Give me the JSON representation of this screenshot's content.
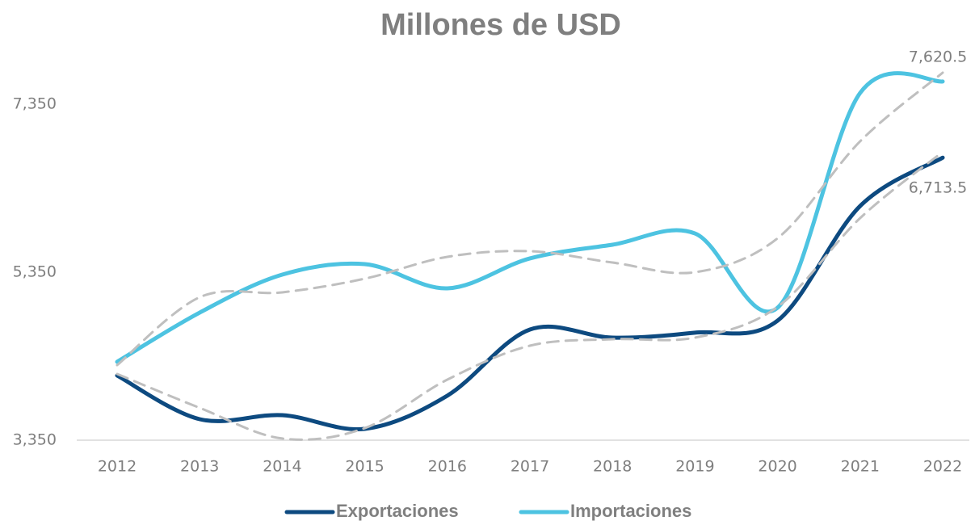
{
  "chart_data": {
    "type": "line",
    "title": "Millones de USD",
    "categories": [
      "2012",
      "2013",
      "2014",
      "2015",
      "2016",
      "2017",
      "2018",
      "2019",
      "2020",
      "2021",
      "2022"
    ],
    "series": [
      {
        "name": "Exportaciones",
        "color": "#0d4a80",
        "values": [
          4120,
          3600,
          3648,
          3485,
          3880,
          4667,
          4571,
          4630,
          4773,
          6138,
          6713.5
        ],
        "value_labels": [
          null,
          null,
          null,
          null,
          null,
          null,
          null,
          null,
          null,
          null,
          "6,713.5"
        ]
      },
      {
        "name": "Importaciones",
        "color": "#4dc3e1",
        "values": [
          4283,
          4869,
          5321,
          5446,
          5158,
          5514,
          5677,
          5811,
          4927,
          7484,
          7620.5
        ],
        "value_labels": [
          null,
          null,
          null,
          null,
          null,
          null,
          null,
          null,
          null,
          null,
          "7,620.5"
        ]
      }
    ],
    "trendlines": [
      {
        "color": "#bfbfbf",
        "dashed": true,
        "values": [
          4138,
          3735,
          3370,
          3494,
          4071,
          4475,
          4552,
          4571,
          4937,
          5994,
          6783
        ]
      },
      {
        "color": "#bfbfbf",
        "dashed": true,
        "values": [
          4244,
          5052,
          5110,
          5273,
          5533,
          5600,
          5465,
          5350,
          5754,
          6908,
          7725
        ]
      }
    ],
    "ylim": [
      3350,
      7750
    ],
    "yticks": [
      {
        "value": 3350,
        "label": "3,350"
      },
      {
        "value": 5350,
        "label": "5,350"
      },
      {
        "value": 7350,
        "label": "7,350"
      }
    ],
    "legend": "bottom"
  }
}
